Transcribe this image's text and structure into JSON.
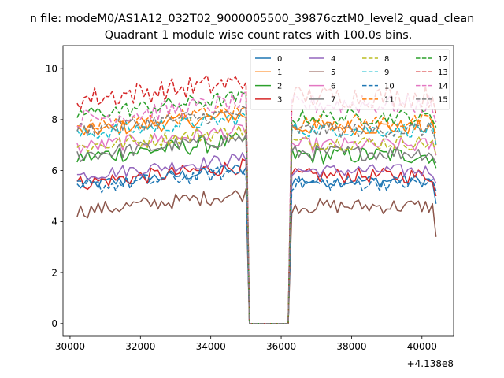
{
  "suptitle": "n file: modeM0/AS1A12_032T02_9000005500_39876cztM0_level2_quad_clean",
  "chart_data": {
    "type": "line",
    "title": "Quadrant 1 module wise count rates with 100.0s bins.",
    "xlabel": "",
    "ylabel": "",
    "x_offset_label": "+4.138e8",
    "xlim": [
      29800,
      40900
    ],
    "ylim": [
      -0.5,
      10.9
    ],
    "x_ticks": [
      30000,
      32000,
      34000,
      36000,
      38000,
      40000
    ],
    "x_tick_labels": [
      "30000",
      "32000",
      "34000",
      "36000",
      "38000",
      "40000"
    ],
    "y_ticks": [
      0,
      2,
      4,
      6,
      8,
      10
    ],
    "y_tick_labels": [
      "0",
      "2",
      "4",
      "6",
      "8",
      "10"
    ],
    "grid": false,
    "legend_position": "top-right",
    "legend_columns": 4,
    "x": {
      "start": 30200,
      "step": 100,
      "gap_start": 35100,
      "gap_end": 36200,
      "end": 40400
    },
    "series": [
      {
        "name": "0",
        "color": "#1f77b4",
        "dash": "solid",
        "before": 5.4,
        "after": 5.6,
        "noise": 0.25,
        "end_value": 4.7
      },
      {
        "name": "1",
        "color": "#ff7f0e",
        "dash": "solid",
        "before": 7.5,
        "after": 7.7,
        "noise": 0.3,
        "end_value": 7.0
      },
      {
        "name": "2",
        "color": "#2ca02c",
        "dash": "solid",
        "before": 6.5,
        "after": 6.6,
        "noise": 0.35,
        "end_value": 6.1
      },
      {
        "name": "3",
        "color": "#d62728",
        "dash": "solid",
        "before": 5.5,
        "after": 5.8,
        "noise": 0.3,
        "end_value": 5.0
      },
      {
        "name": "4",
        "color": "#9467bd",
        "dash": "solid",
        "before": 5.8,
        "after": 6.0,
        "noise": 0.25,
        "end_value": 5.5
      },
      {
        "name": "5",
        "color": "#8c564b",
        "dash": "solid",
        "before": 4.4,
        "after": 4.6,
        "noise": 0.3,
        "end_value": 3.4
      },
      {
        "name": "6",
        "color": "#e377c2",
        "dash": "solid",
        "before": 6.9,
        "after": 7.0,
        "noise": 0.3,
        "end_value": 6.6
      },
      {
        "name": "7",
        "color": "#7f7f7f",
        "dash": "solid",
        "before": 6.6,
        "after": 6.7,
        "noise": 0.3,
        "end_value": 6.3
      },
      {
        "name": "8",
        "color": "#bcbd22",
        "dash": "dashed",
        "before": 6.9,
        "after": 7.1,
        "noise": 0.3,
        "end_value": 6.6
      },
      {
        "name": "9",
        "color": "#17becf",
        "dash": "dashed",
        "before": 7.4,
        "after": 7.6,
        "noise": 0.3,
        "end_value": 7.0
      },
      {
        "name": "10",
        "color": "#1f77b4",
        "dash": "dashed",
        "before": 5.3,
        "after": 5.5,
        "noise": 0.3,
        "end_value": 5.2
      },
      {
        "name": "11",
        "color": "#ff7f0e",
        "dash": "dashed",
        "before": 7.7,
        "after": 7.9,
        "noise": 0.3,
        "end_value": 7.4
      },
      {
        "name": "12",
        "color": "#2ca02c",
        "dash": "dashed",
        "before": 8.2,
        "after": 8.1,
        "noise": 0.3,
        "end_value": 7.7
      },
      {
        "name": "13",
        "color": "#d62728",
        "dash": "dashed",
        "before": 8.8,
        "after": 8.9,
        "noise": 0.45,
        "end_value": 8.2
      },
      {
        "name": "14",
        "color": "#e377c2",
        "dash": "dashed",
        "before": 8.0,
        "after": 8.6,
        "noise": 0.4,
        "end_value": 7.9
      },
      {
        "name": "15",
        "color": "#7f7f7f",
        "dash": "dashed",
        "before": 7.6,
        "after": 7.6,
        "noise": 0.3,
        "end_value": 7.2
      }
    ]
  }
}
